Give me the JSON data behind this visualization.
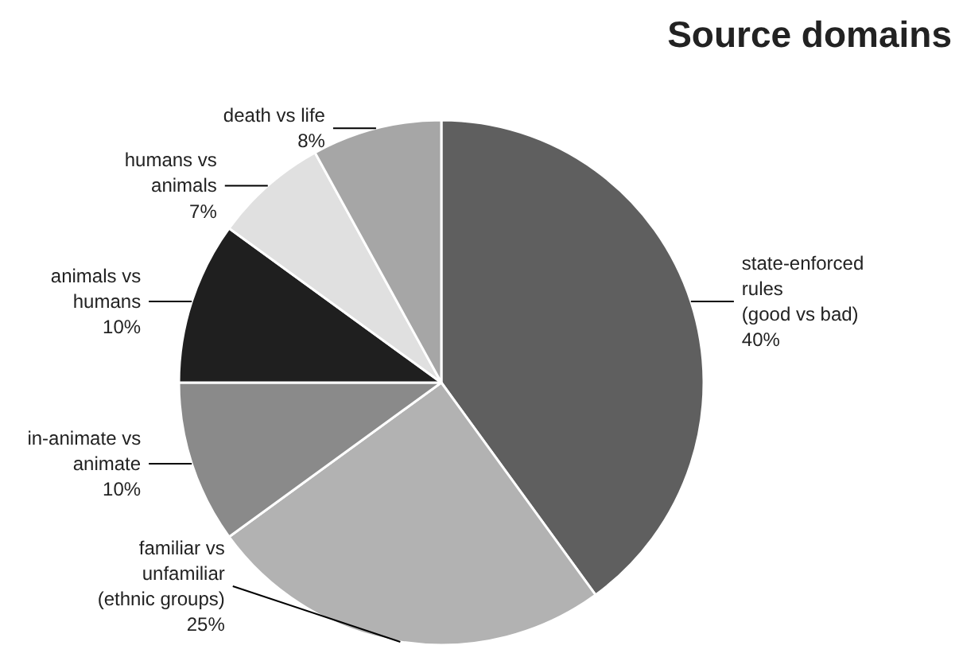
{
  "chart_data": {
    "type": "pie",
    "title": "Source domains",
    "categories": [
      "state-enforced\nrules\n(good vs bad)",
      "familiar vs\nunfamiliar\n(ethnic groups)",
      "in-animate vs\nanimate",
      "animals vs\nhumans",
      "humans vs\nanimals",
      "death vs life"
    ],
    "values": [
      40,
      25,
      10,
      10,
      7,
      8
    ],
    "value_labels": [
      "40%",
      "25%",
      "10%",
      "10%",
      "7%",
      "8%"
    ],
    "colors": [
      "#5f5f5f",
      "#b2b2b2",
      "#8a8a8a",
      "#1f1f1f",
      "#e0e0e0",
      "#a6a6a6"
    ]
  }
}
